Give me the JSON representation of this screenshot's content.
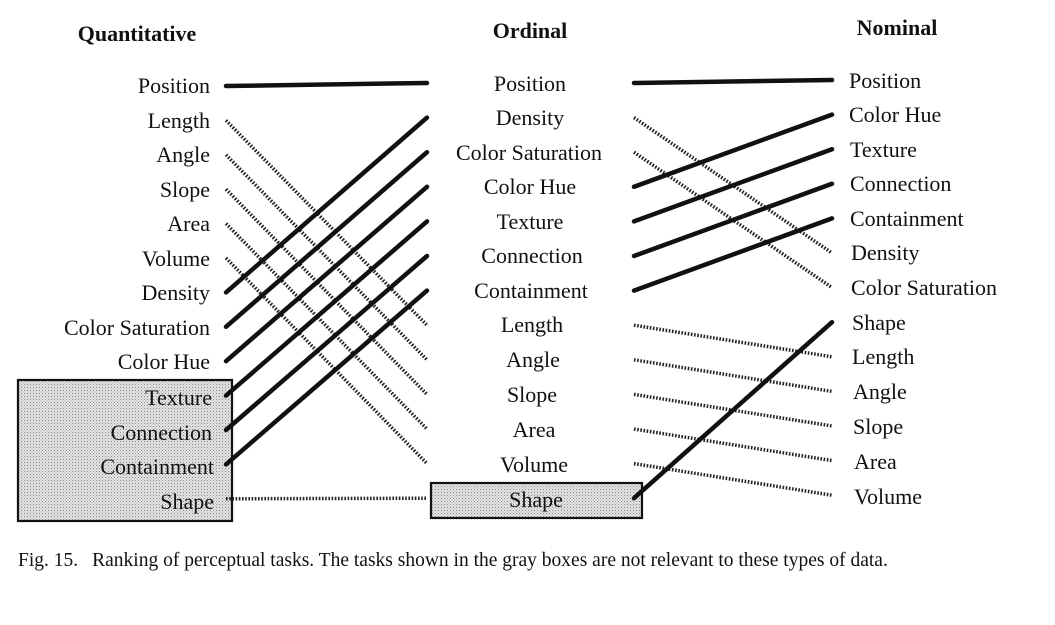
{
  "columns": [
    {
      "title": "Quantitative",
      "items": [
        "Position",
        "Length",
        "Angle",
        "Slope",
        "Area",
        "Volume",
        "Density",
        "Color Saturation",
        "Color Hue",
        "Texture",
        "Connection",
        "Containment",
        "Shape"
      ],
      "not_relevant": [
        "Texture",
        "Connection",
        "Containment",
        "Shape"
      ]
    },
    {
      "title": "Ordinal",
      "items": [
        "Position",
        "Density",
        "Color Saturation",
        "Color Hue",
        "Texture",
        "Connection",
        "Containment",
        "Length",
        "Angle",
        "Slope",
        "Area",
        "Volume",
        "Shape"
      ],
      "not_relevant": [
        "Shape"
      ]
    },
    {
      "title": "Nominal",
      "items": [
        "Position",
        "Color Hue",
        "Texture",
        "Connection",
        "Containment",
        "Density",
        "Color Saturation",
        "Shape",
        "Length",
        "Angle",
        "Slope",
        "Area",
        "Volume"
      ],
      "not_relevant": []
    }
  ],
  "caption": {
    "figure_number": "Fig. 15.",
    "text": "Ranking of perceptual tasks. The tasks shown in the gray boxes are not relevant to these types of data."
  },
  "colors": {
    "ink": "#111111",
    "box_fill": "#d4d4d4",
    "background": "#ffffff"
  }
}
